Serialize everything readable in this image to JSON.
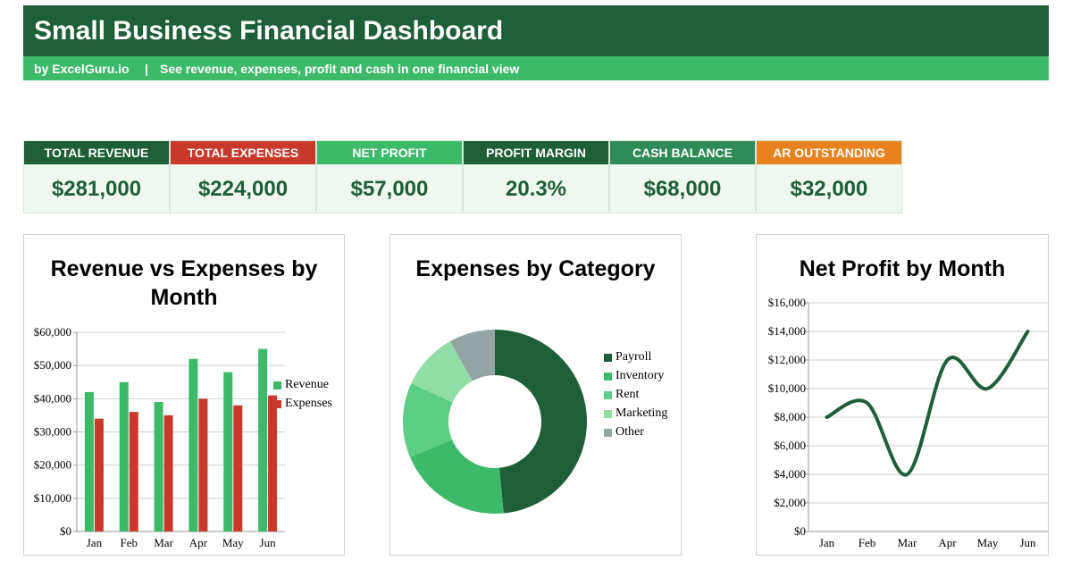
{
  "header": {
    "title": "Small Business Financial Dashboard",
    "by": "by ExcelGuru.io",
    "separator": "|",
    "description": "See revenue, expenses, profit and cash in one financial view"
  },
  "colors": {
    "dark_green": "#1e5e38",
    "green": "#3dba69",
    "mid_green": "#2e8b57",
    "light_green": "#5ccd84",
    "pale_green": "#90dea6",
    "red": "#c9392b",
    "orange": "#e8821e",
    "gray": "#95a5a6"
  },
  "kpis": [
    {
      "label": "TOTAL REVENUE",
      "value": "$281,000",
      "color": "#1e5e38"
    },
    {
      "label": "TOTAL EXPENSES",
      "value": "$224,000",
      "color": "#c9392b"
    },
    {
      "label": "NET PROFIT",
      "value": "$57,000",
      "color": "#3dba69"
    },
    {
      "label": "PROFIT MARGIN",
      "value": "20.3%",
      "color": "#1e5e38"
    },
    {
      "label": "CASH BALANCE",
      "value": "$68,000",
      "color": "#2e8b57"
    },
    {
      "label": "AR OUTSTANDING",
      "value": "$32,000",
      "color": "#e8821e"
    }
  ],
  "chart_data": [
    {
      "type": "bar",
      "title": "Revenue vs Expenses by Month",
      "categories": [
        "Jan",
        "Feb",
        "Mar",
        "Apr",
        "May",
        "Jun"
      ],
      "series": [
        {
          "name": "Revenue",
          "values": [
            42000,
            45000,
            39000,
            52000,
            48000,
            55000
          ],
          "color": "#3dba69"
        },
        {
          "name": "Expenses",
          "values": [
            34000,
            36000,
            35000,
            40000,
            38000,
            41000
          ],
          "color": "#c9392b"
        }
      ],
      "ylim": [
        0,
        60000
      ],
      "yticks": [
        "$0",
        "$10,000",
        "$20,000",
        "$30,000",
        "$40,000",
        "$50,000",
        "$60,000"
      ],
      "grid": true,
      "legend": "right"
    },
    {
      "type": "pie",
      "title": "Expenses by Category",
      "labels": [
        "Payroll",
        "Inventory",
        "Rent",
        "Marketing",
        "Other"
      ],
      "values": [
        48,
        20,
        13,
        10,
        8
      ],
      "colors": [
        "#1e5e38",
        "#3dba69",
        "#5ccd84",
        "#90dea6",
        "#95a5a6"
      ],
      "donut": true,
      "legend": "right"
    },
    {
      "type": "line",
      "title": "Net Profit by Month",
      "categories": [
        "Jan",
        "Feb",
        "Mar",
        "Apr",
        "May",
        "Jun"
      ],
      "values": [
        8000,
        9000,
        4000,
        12000,
        10000,
        14000
      ],
      "ylim": [
        0,
        16000
      ],
      "yticks": [
        "$0",
        "$2,000",
        "$4,000",
        "$6,000",
        "$8,000",
        "$10,000",
        "$12,000",
        "$14,000",
        "$16,000"
      ],
      "color": "#1e5e38",
      "grid": true,
      "smooth": true
    }
  ]
}
